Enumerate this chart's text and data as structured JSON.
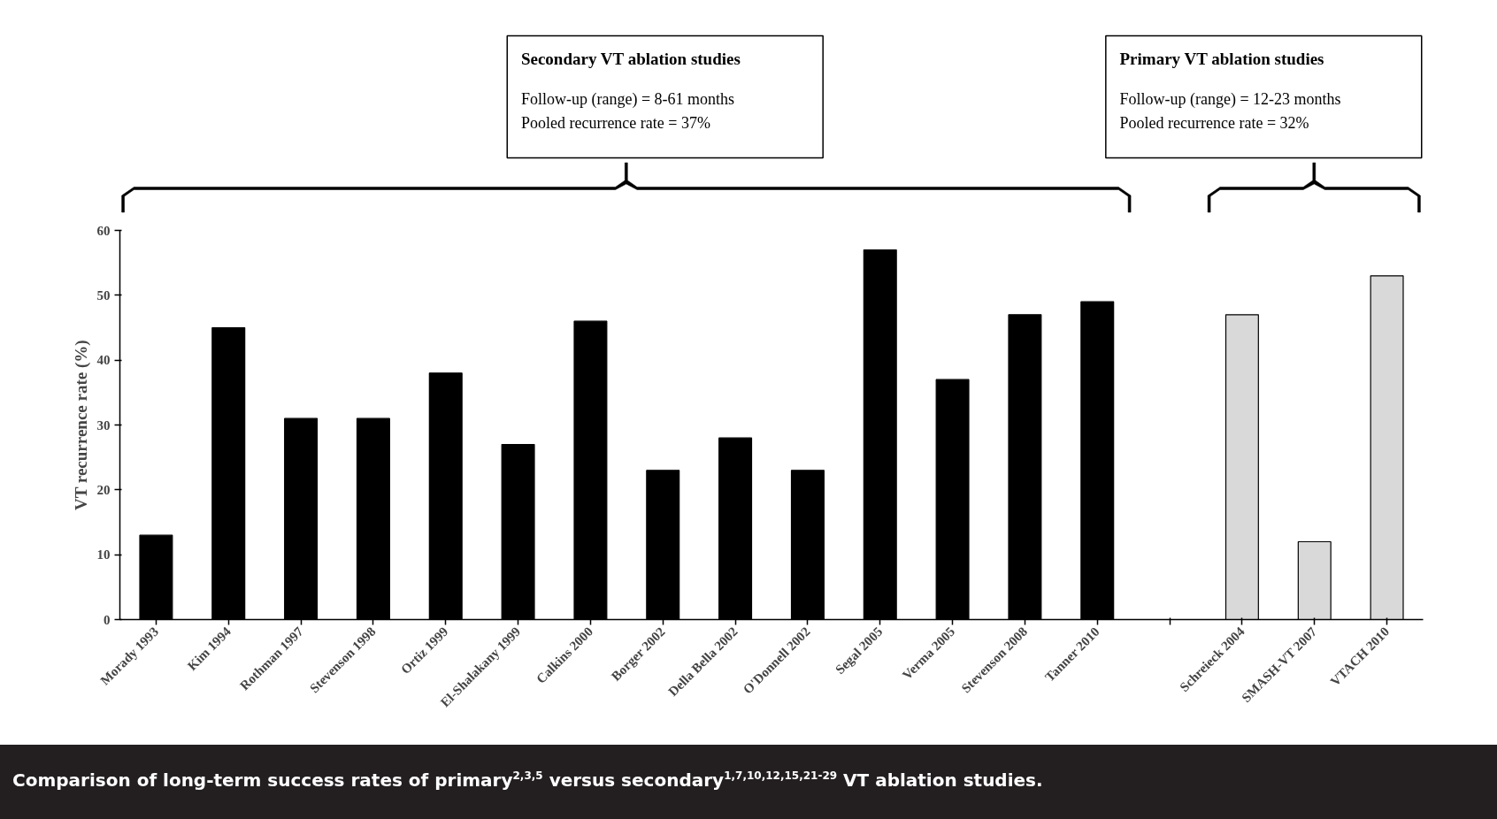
{
  "chart_data": {
    "type": "bar",
    "ylabel": "VT recurrence rate (%)",
    "categories": [
      "Morady 1993",
      "Kim 1994",
      "Rothman 1997",
      "Stevenson 1998",
      "Ortiz 1999",
      "El-Shalakany 1999",
      "Calkins 2000",
      "Borger 2002",
      "Della Bella 2002",
      "O'Donnell 2002",
      "Segal 2005",
      "Verma 2005",
      "Stevenson 2008",
      "Tanner 2010",
      null,
      "Schreieck 2004",
      "SMASH-VT 2007",
      "VTACH 2010"
    ],
    "values": [
      13,
      45,
      31,
      31,
      38,
      27,
      46,
      23,
      28,
      23,
      57,
      37,
      47,
      49,
      null,
      47,
      12,
      53
    ],
    "colors": [
      "#000000",
      "#000000",
      "#000000",
      "#000000",
      "#000000",
      "#000000",
      "#000000",
      "#000000",
      "#000000",
      "#000000",
      "#000000",
      "#000000",
      "#000000",
      "#000000",
      null,
      "#d9d9d9",
      "#d9d9d9",
      "#d9d9d9"
    ],
    "ylim": [
      0,
      60
    ],
    "yticks": [
      0,
      10,
      20,
      30,
      40,
      50,
      60
    ],
    "annotations": [
      "Secondary VT ablation studies\nFollow-up (range) = 8-61 months\nPooled recurrence rate = 37%",
      "Primary VT ablation studies\nFollow-up (range) = 12-23 months\nPooled recurrence rate = 32%",
      "Comparison of long-term success rates of primary$^{2,3,5}$ versus secondary$^{1,7,10,12,15,21-29}$ VT ablation studies."
    ]
  }
}
